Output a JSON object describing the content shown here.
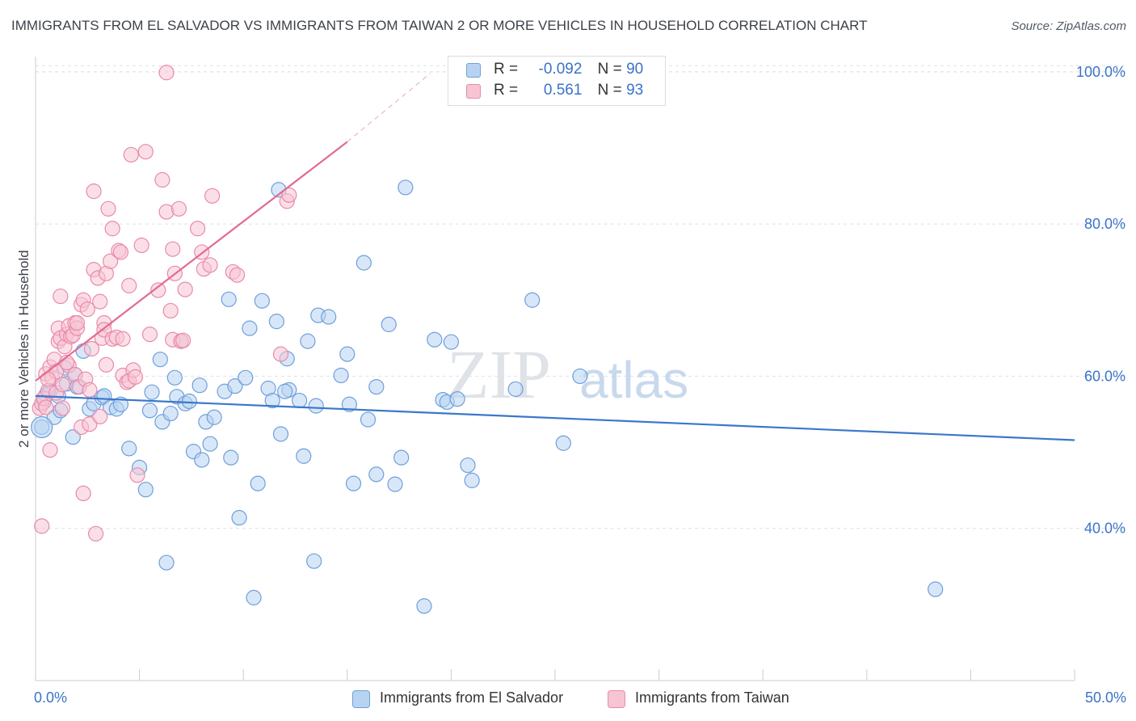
{
  "title": "IMMIGRANTS FROM EL SALVADOR VS IMMIGRANTS FROM TAIWAN 2 OR MORE VEHICLES IN HOUSEHOLD CORRELATION CHART",
  "source": "Source: ZipAtlas.com",
  "watermark": {
    "part1": "ZIP",
    "part2": "atlas"
  },
  "colors": {
    "blue_fill": "#b8d3f2",
    "blue_stroke": "#6e9fdb",
    "blue_line": "#3a78c9",
    "pink_fill": "#f7c4d3",
    "pink_stroke": "#e98aaa",
    "pink_line": "#e06b93",
    "axis_label": "#3a73c8",
    "grid": "#dde1e6"
  },
  "legend_top": [
    {
      "r_label": "R =",
      "r_value": "-0.092",
      "n_label": "N =",
      "n_value": "90",
      "color": "#b8d3f2"
    },
    {
      "r_label": "R =",
      "r_value": "0.561",
      "n_label": "N =",
      "n_value": "93",
      "color": "#f7c4d3"
    }
  ],
  "legend_bottom": [
    {
      "label": "Immigrants from El Salvador",
      "color": "#b8d3f2"
    },
    {
      "label": "Immigrants from Taiwan",
      "color": "#f7c4d3"
    }
  ],
  "chart_data": {
    "type": "scatter",
    "title": "IMMIGRANTS FROM EL SALVADOR VS IMMIGRANTS FROM TAIWAN 2 OR MORE VEHICLES IN HOUSEHOLD CORRELATION CHART",
    "xlabel": "",
    "ylabel": "2 or more Vehicles in Household",
    "xlim": [
      0,
      50
    ],
    "ylim": [
      20,
      102
    ],
    "x_tick_labels": [
      "0.0%",
      "50.0%"
    ],
    "y_ticks": [
      40,
      60,
      80,
      100
    ],
    "y_tick_labels": [
      "40.0%",
      "60.0%",
      "80.0%",
      "100.0%"
    ],
    "grid": true,
    "legend_placement": "top-center",
    "series": [
      {
        "name": "Immigrants from El Salvador",
        "r": -0.092,
        "n": 90,
        "trend": {
          "x": [
            0,
            50
          ],
          "y": [
            57.4,
            51.6
          ]
        },
        "points": [
          [
            0.3,
            53.3
          ],
          [
            0.4,
            56.6
          ],
          [
            0.5,
            57.5
          ],
          [
            0.7,
            58.1
          ],
          [
            0.9,
            54.6
          ],
          [
            1.1,
            57.4
          ],
          [
            1.2,
            55.5
          ],
          [
            1.4,
            61.1
          ],
          [
            1.5,
            59.0
          ],
          [
            1.8,
            52.0
          ],
          [
            1.9,
            60.2
          ],
          [
            2.0,
            58.6
          ],
          [
            2.3,
            63.3
          ],
          [
            2.6,
            55.7
          ],
          [
            2.8,
            56.4
          ],
          [
            3.2,
            57.2
          ],
          [
            3.3,
            57.4
          ],
          [
            3.6,
            55.9
          ],
          [
            3.9,
            55.7
          ],
          [
            4.1,
            56.3
          ],
          [
            4.5,
            50.5
          ],
          [
            5.0,
            48.0
          ],
          [
            5.3,
            45.1
          ],
          [
            5.5,
            55.5
          ],
          [
            5.6,
            57.9
          ],
          [
            6.0,
            62.2
          ],
          [
            6.1,
            54.0
          ],
          [
            6.3,
            35.5
          ],
          [
            6.5,
            55.1
          ],
          [
            6.8,
            57.3
          ],
          [
            7.0,
            64.6
          ],
          [
            7.2,
            56.4
          ],
          [
            7.4,
            56.7
          ],
          [
            7.6,
            50.1
          ],
          [
            7.9,
            58.8
          ],
          [
            8.0,
            49.0
          ],
          [
            8.2,
            54.0
          ],
          [
            8.4,
            51.1
          ],
          [
            8.6,
            54.6
          ],
          [
            9.1,
            58.0
          ],
          [
            9.3,
            70.1
          ],
          [
            9.4,
            49.3
          ],
          [
            9.6,
            58.7
          ],
          [
            9.8,
            41.4
          ],
          [
            10.1,
            59.8
          ],
          [
            10.3,
            66.3
          ],
          [
            10.5,
            30.9
          ],
          [
            10.7,
            45.9
          ],
          [
            10.9,
            69.9
          ],
          [
            11.2,
            58.4
          ],
          [
            11.4,
            56.8
          ],
          [
            11.6,
            67.2
          ],
          [
            11.8,
            52.4
          ],
          [
            12.1,
            62.3
          ],
          [
            12.2,
            58.2
          ],
          [
            12.7,
            56.8
          ],
          [
            12.9,
            49.5
          ],
          [
            13.1,
            64.6
          ],
          [
            13.5,
            56.1
          ],
          [
            13.6,
            68.0
          ],
          [
            13.4,
            35.7
          ],
          [
            14.1,
            67.8
          ],
          [
            14.7,
            60.1
          ],
          [
            15.0,
            62.9
          ],
          [
            15.1,
            56.3
          ],
          [
            15.3,
            45.9
          ],
          [
            15.8,
            74.9
          ],
          [
            16.0,
            54.3
          ],
          [
            16.4,
            58.6
          ],
          [
            16.4,
            47.1
          ],
          [
            17.0,
            66.8
          ],
          [
            17.3,
            45.8
          ],
          [
            17.6,
            49.3
          ],
          [
            17.8,
            84.8
          ],
          [
            18.7,
            29.8
          ],
          [
            19.2,
            64.8
          ],
          [
            19.6,
            56.9
          ],
          [
            19.8,
            56.6
          ],
          [
            20.0,
            64.5
          ],
          [
            20.3,
            57.0
          ],
          [
            20.8,
            48.3
          ],
          [
            21.0,
            46.3
          ],
          [
            23.1,
            58.3
          ],
          [
            23.9,
            70.0
          ],
          [
            25.4,
            51.2
          ],
          [
            26.2,
            60.0
          ],
          [
            43.3,
            32.0
          ],
          [
            11.7,
            84.5
          ],
          [
            12.0,
            58.0
          ],
          [
            6.7,
            59.8
          ]
        ]
      },
      {
        "name": "Immigrants from Taiwan",
        "r": 0.561,
        "n": 93,
        "trend": {
          "x": [
            0,
            15
          ],
          "y": [
            59.4,
            90.8
          ]
        },
        "trend_extension": {
          "x": [
            15,
            19
          ],
          "y": [
            90.8,
            99.8
          ]
        },
        "points": [
          [
            0.2,
            55.8
          ],
          [
            0.3,
            56.4
          ],
          [
            0.3,
            40.3
          ],
          [
            0.4,
            57.1
          ],
          [
            0.5,
            55.9
          ],
          [
            0.5,
            60.3
          ],
          [
            0.6,
            58.1
          ],
          [
            0.7,
            50.3
          ],
          [
            0.7,
            61.2
          ],
          [
            0.8,
            59.8
          ],
          [
            0.9,
            62.2
          ],
          [
            1.0,
            60.6
          ],
          [
            1.0,
            57.8
          ],
          [
            1.1,
            64.6
          ],
          [
            1.1,
            66.3
          ],
          [
            1.2,
            70.5
          ],
          [
            1.2,
            65.0
          ],
          [
            1.3,
            55.8
          ],
          [
            1.3,
            58.9
          ],
          [
            1.4,
            63.9
          ],
          [
            1.5,
            65.5
          ],
          [
            1.6,
            66.6
          ],
          [
            1.6,
            61.4
          ],
          [
            1.7,
            65.2
          ],
          [
            1.8,
            65.4
          ],
          [
            1.9,
            67.0
          ],
          [
            1.9,
            60.2
          ],
          [
            2.0,
            66.3
          ],
          [
            2.1,
            58.6
          ],
          [
            2.2,
            53.3
          ],
          [
            2.2,
            69.4
          ],
          [
            2.3,
            44.6
          ],
          [
            2.3,
            70.0
          ],
          [
            2.4,
            59.6
          ],
          [
            2.6,
            53.7
          ],
          [
            2.6,
            58.2
          ],
          [
            2.7,
            63.6
          ],
          [
            2.8,
            74.0
          ],
          [
            2.8,
            84.3
          ],
          [
            2.9,
            39.3
          ],
          [
            3.0,
            72.9
          ],
          [
            3.1,
            54.7
          ],
          [
            3.1,
            69.8
          ],
          [
            3.2,
            65.0
          ],
          [
            3.3,
            67.0
          ],
          [
            3.3,
            66.1
          ],
          [
            3.4,
            73.5
          ],
          [
            3.4,
            61.5
          ],
          [
            3.5,
            82.0
          ],
          [
            3.6,
            75.1
          ],
          [
            3.7,
            64.9
          ],
          [
            3.7,
            79.4
          ],
          [
            3.9,
            65.1
          ],
          [
            4.0,
            76.5
          ],
          [
            4.1,
            76.3
          ],
          [
            4.2,
            60.1
          ],
          [
            4.2,
            64.9
          ],
          [
            4.4,
            59.2
          ],
          [
            4.5,
            59.4
          ],
          [
            4.5,
            71.9
          ],
          [
            4.6,
            89.1
          ],
          [
            4.7,
            60.8
          ],
          [
            4.8,
            59.9
          ],
          [
            4.9,
            47.0
          ],
          [
            5.1,
            77.2
          ],
          [
            5.3,
            89.5
          ],
          [
            5.5,
            65.5
          ],
          [
            5.9,
            71.3
          ],
          [
            6.1,
            85.8
          ],
          [
            6.3,
            99.9
          ],
          [
            6.3,
            81.6
          ],
          [
            6.5,
            68.6
          ],
          [
            6.6,
            64.8
          ],
          [
            6.6,
            76.7
          ],
          [
            6.7,
            73.5
          ],
          [
            6.9,
            82.0
          ],
          [
            7.0,
            64.6
          ],
          [
            7.1,
            64.7
          ],
          [
            7.2,
            71.4
          ],
          [
            7.8,
            79.4
          ],
          [
            8.0,
            76.3
          ],
          [
            8.1,
            74.1
          ],
          [
            8.4,
            74.6
          ],
          [
            8.5,
            83.7
          ],
          [
            9.5,
            73.7
          ],
          [
            9.7,
            73.3
          ],
          [
            11.8,
            62.9
          ],
          [
            12.1,
            83.0
          ],
          [
            12.2,
            83.8
          ],
          [
            0.6,
            59.6
          ],
          [
            1.5,
            61.8
          ],
          [
            2.0,
            67.0
          ],
          [
            2.5,
            68.8
          ]
        ]
      }
    ]
  }
}
